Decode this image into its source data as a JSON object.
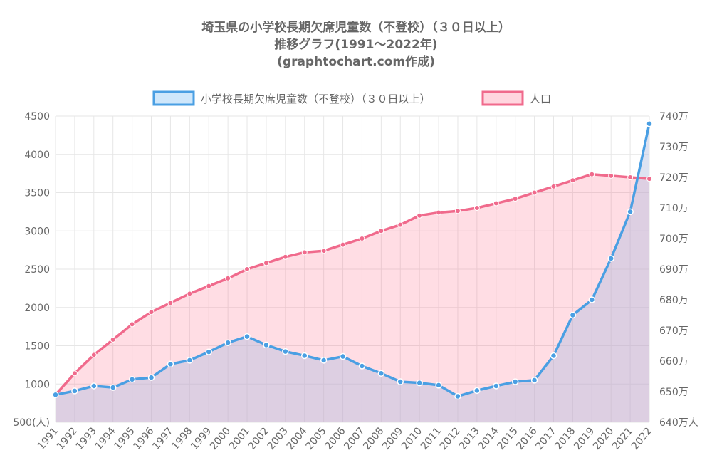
{
  "title_lines": [
    "埼玉県の小学校長期欠席児童数（不登校）（３０日以上）",
    "推移グラフ(1991～2022年)",
    "(graphtochart.com作成)"
  ],
  "colors": {
    "blue": "#4a9fe3",
    "blue_fill": "rgba(74,159,227,0.22)",
    "pink": "#f06a8c",
    "pink_fill": "rgba(255,99,132,0.22)",
    "grid": "#e6e6e6",
    "text": "#666666"
  },
  "chart_data": {
    "type": "line",
    "title": "埼玉県の小学校長期欠席児童数（不登校）（３０日以上） 推移グラフ(1991～2022年) (graphtochart.com作成)",
    "categories": [
      "1991",
      "1992",
      "1993",
      "1994",
      "1995",
      "1996",
      "1997",
      "1998",
      "1999",
      "2000",
      "2001",
      "2002",
      "2003",
      "2004",
      "2005",
      "2006",
      "2007",
      "2008",
      "2009",
      "2010",
      "2011",
      "2012",
      "2013",
      "2014",
      "2015",
      "2016",
      "2017",
      "2018",
      "2019",
      "2020",
      "2021",
      "2022"
    ],
    "series": [
      {
        "name": "小学校長期欠席児童数（不登校）（３０日以上）",
        "axis": "left",
        "values": [
          860,
          910,
          975,
          955,
          1060,
          1085,
          1260,
          1310,
          1420,
          1540,
          1620,
          1510,
          1425,
          1370,
          1310,
          1360,
          1235,
          1140,
          1030,
          1015,
          985,
          840,
          915,
          975,
          1030,
          1050,
          1370,
          1900,
          2100,
          2640,
          3250,
          4400
        ]
      },
      {
        "name": "人口",
        "axis": "right",
        "unit": "万",
        "values": [
          649,
          656,
          662,
          667,
          672,
          676,
          679,
          682,
          684.5,
          687,
          690,
          692,
          694,
          695.5,
          696,
          698,
          700,
          702.5,
          704.5,
          707.5,
          708.5,
          709,
          710,
          711.5,
          713,
          715,
          717,
          719,
          721,
          720.5,
          720,
          719.5
        ]
      }
    ],
    "y_left": {
      "min": 500,
      "max": 4500,
      "ticks": [
        "500(人)",
        "1000",
        "1500",
        "2000",
        "2500",
        "3000",
        "3500",
        "4000",
        "4500"
      ]
    },
    "y_right": {
      "min": 640,
      "max": 740,
      "ticks": [
        "640万人",
        "650万",
        "660万",
        "670万",
        "680万",
        "690万",
        "700万",
        "710万",
        "720万",
        "730万",
        "740万"
      ]
    },
    "grid": true,
    "legend_position": "top"
  }
}
